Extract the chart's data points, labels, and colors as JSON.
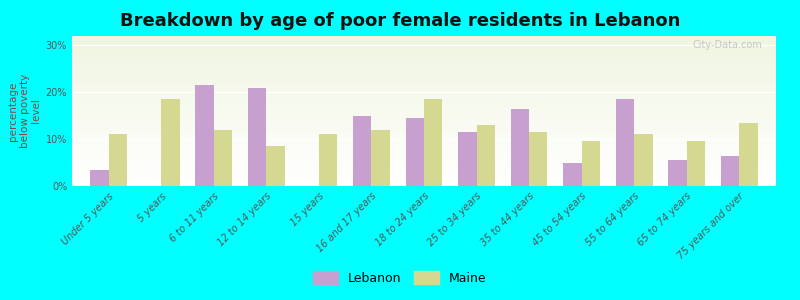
{
  "title": "Breakdown by age of poor female residents in Lebanon",
  "ylabel": "percentage\nbelow poverty\nlevel",
  "categories": [
    "Under 5 years",
    "5 years",
    "6 to 11 years",
    "12 to 14 years",
    "15 years",
    "16 and 17 years",
    "18 to 24 years",
    "25 to 34 years",
    "35 to 44 years",
    "45 to 54 years",
    "55 to 64 years",
    "65 to 74 years",
    "75 years and over"
  ],
  "lebanon_values": [
    3.5,
    null,
    21.5,
    21.0,
    null,
    15.0,
    14.5,
    11.5,
    16.5,
    5.0,
    18.5,
    5.5,
    6.5
  ],
  "maine_values": [
    11.0,
    18.5,
    12.0,
    8.5,
    11.0,
    12.0,
    18.5,
    13.0,
    11.5,
    9.5,
    11.0,
    9.5,
    13.5
  ],
  "lebanon_color": "#c8a0d0",
  "maine_color": "#d4d890",
  "background_color": "#00ffff",
  "yticks": [
    0,
    10,
    20,
    30
  ],
  "ytick_labels": [
    "0%",
    "10%",
    "20%",
    "30%"
  ],
  "ylim": [
    0,
    32
  ],
  "title_fontsize": 13,
  "axis_label_fontsize": 7.5,
  "tick_fontsize": 7,
  "legend_fontsize": 9,
  "watermark": "City-Data.com"
}
